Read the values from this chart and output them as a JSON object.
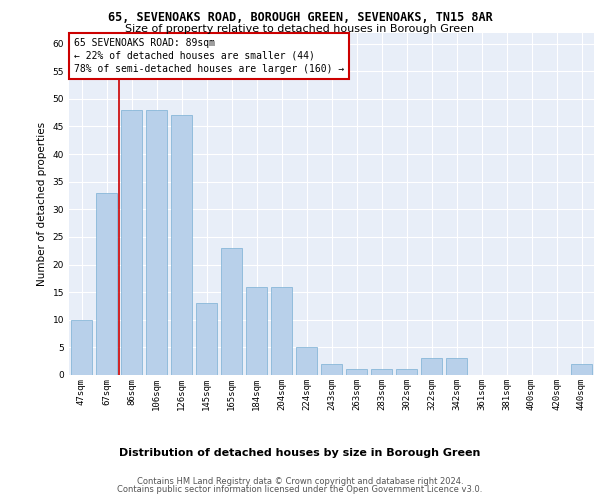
{
  "title1": "65, SEVENOAKS ROAD, BOROUGH GREEN, SEVENOAKS, TN15 8AR",
  "title2": "Size of property relative to detached houses in Borough Green",
  "xlabel": "Distribution of detached houses by size in Borough Green",
  "ylabel": "Number of detached properties",
  "categories": [
    "47sqm",
    "67sqm",
    "86sqm",
    "106sqm",
    "126sqm",
    "145sqm",
    "165sqm",
    "184sqm",
    "204sqm",
    "224sqm",
    "243sqm",
    "263sqm",
    "283sqm",
    "302sqm",
    "322sqm",
    "342sqm",
    "361sqm",
    "381sqm",
    "400sqm",
    "420sqm",
    "440sqm"
  ],
  "values": [
    10,
    33,
    48,
    48,
    47,
    13,
    23,
    16,
    16,
    5,
    2,
    1,
    1,
    1,
    3,
    3,
    0,
    0,
    0,
    0,
    2
  ],
  "bar_color": "#b8d0ea",
  "bar_edge_color": "#7aafd4",
  "vline_color": "#cc0000",
  "vline_x_index": 2,
  "annotation_title": "65 SEVENOAKS ROAD: 89sqm",
  "annotation_line1": "← 22% of detached houses are smaller (44)",
  "annotation_line2": "78% of semi-detached houses are larger (160) →",
  "annotation_box_bg": "#ffffff",
  "annotation_box_edge": "#cc0000",
  "ylim_max": 62,
  "yticks": [
    0,
    5,
    10,
    15,
    20,
    25,
    30,
    35,
    40,
    45,
    50,
    55,
    60
  ],
  "footer1": "Contains HM Land Registry data © Crown copyright and database right 2024.",
  "footer2": "Contains public sector information licensed under the Open Government Licence v3.0.",
  "plot_bg": "#e8eef8",
  "grid_color": "#ffffff",
  "title1_fontsize": 8.5,
  "title2_fontsize": 8,
  "tick_fontsize": 6.5,
  "ylabel_fontsize": 7.5,
  "xlabel_fontsize": 8,
  "annot_fontsize": 7,
  "footer_fontsize": 6
}
